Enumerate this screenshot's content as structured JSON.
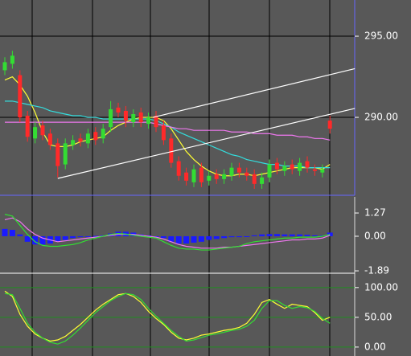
{
  "chart_data": [
    {
      "type": "candlestick",
      "open": [
        292.9,
        293.3,
        292.6,
        290.1,
        288.7,
        289.5,
        289.0,
        288.4,
        287.1,
        288.3,
        288.7,
        288.4,
        289.1,
        288.7,
        289.4,
        290.6,
        290.4,
        289.7,
        290.3,
        289.6,
        290.1,
        289.5,
        288.7,
        287.3,
        286.6,
        286.0,
        286.9,
        286.1,
        286.5,
        286.2,
        286.4,
        286.9,
        286.6,
        286.5,
        285.9,
        286.3,
        287.2,
        286.7,
        287.1,
        286.7,
        287.3,
        286.8,
        286.6,
        289.8
      ],
      "high": [
        293.7,
        294.1,
        292.9,
        290.4,
        289.7,
        289.8,
        289.3,
        288.7,
        288.7,
        288.9,
        289.0,
        289.3,
        289.4,
        289.6,
        291.0,
        290.9,
        290.7,
        290.5,
        290.6,
        290.3,
        290.4,
        289.8,
        289.0,
        287.6,
        286.9,
        287.1,
        287.2,
        286.7,
        286.8,
        286.8,
        287.2,
        287.2,
        286.9,
        286.8,
        286.6,
        287.4,
        287.5,
        287.3,
        287.4,
        287.5,
        287.6,
        287.1,
        287.1,
        290.1
      ],
      "low": [
        292.6,
        293.0,
        289.7,
        288.5,
        288.4,
        288.6,
        288.0,
        286.3,
        286.8,
        288.0,
        288.2,
        288.1,
        288.3,
        288.4,
        289.1,
        290.0,
        289.4,
        289.4,
        289.4,
        289.3,
        289.1,
        288.3,
        286.9,
        286.1,
        285.8,
        285.7,
        285.7,
        285.8,
        285.9,
        285.9,
        286.1,
        286.3,
        286.1,
        285.6,
        285.6,
        286.0,
        286.5,
        286.4,
        286.5,
        286.4,
        286.6,
        286.4,
        286.3,
        289.0
      ],
      "close": [
        293.4,
        293.8,
        290.0,
        288.8,
        289.4,
        288.9,
        288.3,
        287.0,
        288.4,
        288.6,
        288.5,
        289.0,
        288.6,
        289.3,
        290.5,
        290.3,
        289.8,
        290.2,
        289.7,
        290.0,
        289.4,
        288.6,
        287.2,
        286.4,
        286.1,
        286.8,
        286.0,
        286.4,
        286.2,
        286.5,
        286.9,
        286.6,
        286.4,
        285.9,
        286.3,
        287.1,
        286.8,
        287.0,
        286.8,
        287.2,
        286.9,
        286.7,
        286.8,
        289.3
      ],
      "up_color": "#33dd33",
      "down_color": "#ff2a2a",
      "series": [
        {
          "color": "#ffff33",
          "values": [
            292.3,
            292.5,
            292.0,
            291.3,
            290.3,
            289.1,
            288.3,
            288.2,
            288.2,
            288.3,
            288.5,
            288.6,
            288.7,
            288.8,
            289.2,
            289.5,
            289.7,
            289.9,
            290.0,
            290.0,
            290.0,
            289.8,
            289.3,
            288.6,
            287.9,
            287.4,
            287.0,
            286.7,
            286.5,
            286.4,
            286.4,
            286.5,
            286.5,
            286.4,
            286.5,
            286.6,
            286.7,
            286.8,
            286.9,
            286.9,
            286.9,
            286.9,
            286.8,
            287.1
          ]
        },
        {
          "color": "#33dddd",
          "values": [
            291.0,
            291.0,
            290.9,
            290.8,
            290.7,
            290.6,
            290.4,
            290.3,
            290.2,
            290.1,
            290.1,
            290.0,
            290.0,
            289.9,
            289.9,
            289.9,
            289.9,
            289.9,
            289.9,
            289.9,
            289.8,
            289.6,
            289.4,
            289.1,
            288.9,
            288.7,
            288.5,
            288.3,
            288.1,
            287.9,
            287.7,
            287.6,
            287.4,
            287.3,
            287.2,
            287.1,
            287.1,
            287.0,
            287.0,
            287.0,
            286.9,
            286.9,
            286.9,
            286.9
          ]
        },
        {
          "color": "#ee77ee",
          "values": [
            289.7,
            289.7,
            289.7,
            289.7,
            289.7,
            289.7,
            289.7,
            289.7,
            289.7,
            289.7,
            289.7,
            289.7,
            289.7,
            289.7,
            289.7,
            289.7,
            289.7,
            289.7,
            289.7,
            289.7,
            289.6,
            289.5,
            289.4,
            289.3,
            289.3,
            289.2,
            289.2,
            289.2,
            289.2,
            289.2,
            289.1,
            289.1,
            289.1,
            289.0,
            289.0,
            289.0,
            288.9,
            288.9,
            288.9,
            288.8,
            288.8,
            288.7,
            288.7,
            288.6
          ]
        }
      ],
      "trendlines": [
        {
          "color": "#ffffff",
          "x": [
            7,
            46.3
          ],
          "y": [
            286.24,
            290.55
          ]
        },
        {
          "color": "#ffffff",
          "x": [
            19.6,
            46.3
          ],
          "y": [
            290.0,
            293.0
          ]
        }
      ],
      "ylim": [
        285.2,
        297.23
      ],
      "yticks": [
        {
          "value": 290,
          "label": "290.00"
        },
        {
          "value": 295,
          "label": "295.00"
        }
      ],
      "grid": true,
      "grid_color": "#000000"
    },
    {
      "type": "macd",
      "histogram": {
        "color": "#1a1aff",
        "values": [
          0.4,
          0.35,
          0.1,
          -0.3,
          -0.45,
          -0.45,
          -0.4,
          -0.3,
          -0.2,
          -0.1,
          -0.05,
          0,
          0.02,
          0.05,
          0.15,
          0.25,
          0.25,
          0.2,
          0.1,
          0.05,
          0,
          -0.1,
          -0.3,
          -0.4,
          -0.4,
          -0.35,
          -0.3,
          -0.2,
          -0.15,
          -0.1,
          -0.05,
          -0.05,
          0,
          0.05,
          0.1,
          0.12,
          0.12,
          0.1,
          0.1,
          0.1,
          0.08,
          0.05,
          0.05,
          0.2
        ]
      },
      "series": [
        {
          "color": "#ee77ee",
          "values": [
            0.9,
            1.0,
            0.8,
            0.4,
            0.1,
            -0.1,
            -0.2,
            -0.3,
            -0.25,
            -0.2,
            -0.15,
            -0.1,
            -0.05,
            0,
            0.05,
            0.1,
            0.1,
            0.1,
            0.05,
            0,
            -0.05,
            -0.15,
            -0.3,
            -0.45,
            -0.55,
            -0.6,
            -0.65,
            -0.65,
            -0.65,
            -0.6,
            -0.6,
            -0.55,
            -0.5,
            -0.45,
            -0.4,
            -0.35,
            -0.3,
            -0.25,
            -0.2,
            -0.2,
            -0.15,
            -0.15,
            -0.1,
            0.05
          ]
        },
        {
          "color": "#33dd33",
          "values": [
            1.2,
            1.1,
            0.6,
            0.1,
            -0.3,
            -0.5,
            -0.55,
            -0.55,
            -0.5,
            -0.45,
            -0.35,
            -0.2,
            -0.1,
            0,
            0.1,
            0.15,
            0.12,
            0.05,
            0,
            -0.05,
            -0.1,
            -0.3,
            -0.5,
            -0.65,
            -0.7,
            -0.7,
            -0.75,
            -0.75,
            -0.7,
            -0.65,
            -0.6,
            -0.55,
            -0.4,
            -0.3,
            -0.25,
            -0.2,
            -0.15,
            -0.1,
            -0.1,
            -0.05,
            -0.05,
            -0.05,
            0,
            0.1
          ]
        }
      ],
      "ylim": [
        -2.02,
        2.15
      ],
      "yticks": [
        {
          "value": 1.27,
          "label": "1.27"
        },
        {
          "value": 0,
          "label": "0.00"
        },
        {
          "value": -1.89,
          "label": "-1.89"
        }
      ],
      "grid": false
    },
    {
      "type": "line",
      "series": [
        {
          "color": "#ffff33",
          "values": [
            94,
            85,
            55,
            35,
            22,
            15,
            10,
            12,
            18,
            28,
            38,
            50,
            62,
            72,
            80,
            88,
            90,
            85,
            75,
            60,
            48,
            38,
            25,
            15,
            12,
            15,
            20,
            22,
            25,
            28,
            30,
            33,
            40,
            55,
            75,
            80,
            72,
            65,
            72,
            70,
            68,
            58,
            45,
            50
          ]
        },
        {
          "color": "#33dd33",
          "values": [
            90,
            88,
            65,
            40,
            25,
            15,
            8,
            5,
            10,
            20,
            32,
            45,
            58,
            68,
            78,
            85,
            90,
            88,
            80,
            65,
            52,
            40,
            28,
            18,
            10,
            12,
            16,
            20,
            22,
            25,
            28,
            30,
            35,
            45,
            65,
            78,
            78,
            70,
            65,
            68,
            66,
            60,
            48,
            40
          ]
        }
      ],
      "ylim": [
        -15,
        120
      ],
      "yticks": [
        {
          "value": 0,
          "label": "0.00"
        },
        {
          "value": 50,
          "label": "50.00"
        },
        {
          "value": 100,
          "label": "100.00"
        }
      ],
      "grid": true,
      "grid_color": "#1f8f1f"
    }
  ]
}
